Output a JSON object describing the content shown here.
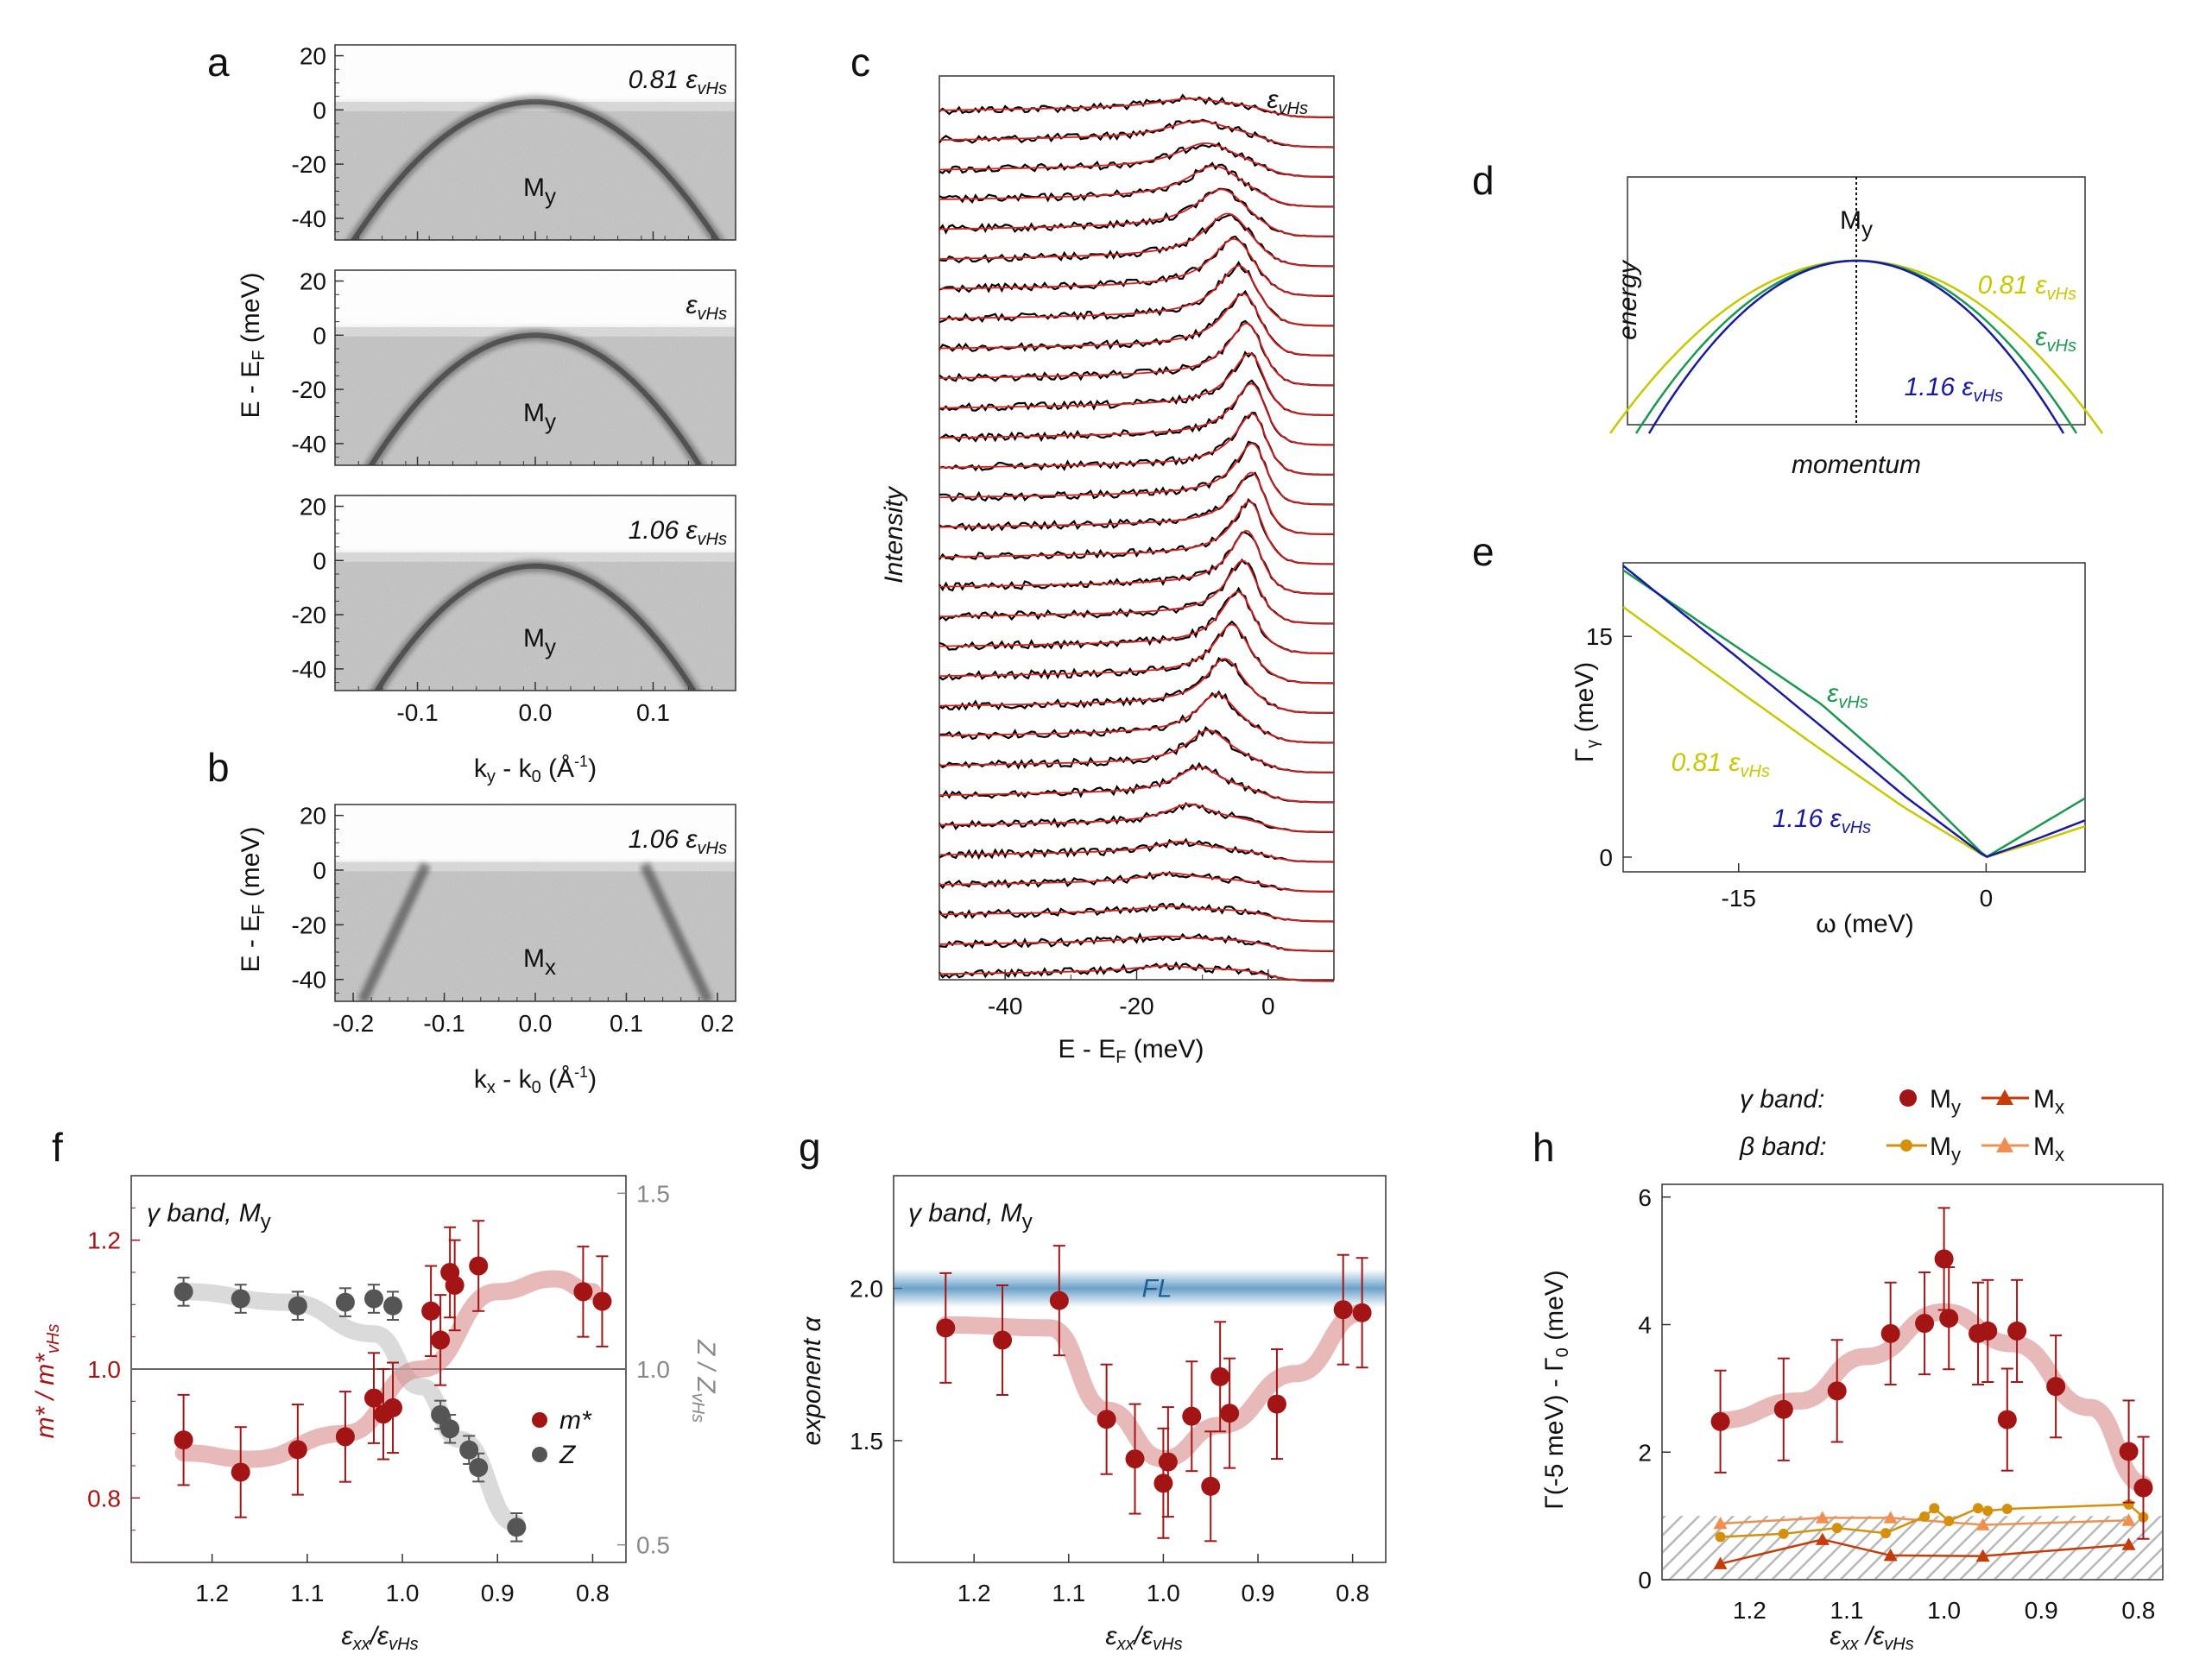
{
  "chart_data": [
    {
      "panel": "a",
      "type": "heatmap",
      "ylabel": "E - E_F (meV)",
      "xlabel": "k_y - k_0 (Å^-1)",
      "yticks": [
        "20",
        "0",
        "-20",
        "-40"
      ],
      "xticks": [
        "-0.1",
        "0.0",
        "0.1"
      ],
      "xlim": [
        -0.17,
        0.17
      ],
      "ylim": [
        -48,
        24
      ],
      "subpanels": [
        {
          "strain_label": "0.81 ε_vHs",
          "point_label": "M_y"
        },
        {
          "strain_label": "ε_vHs",
          "point_label": "M_y"
        },
        {
          "strain_label": "1.06 ε_vHs",
          "point_label": "M_y"
        }
      ]
    },
    {
      "panel": "b",
      "type": "heatmap",
      "ylabel": "E - E_F (meV)",
      "xlabel": "k_x - k_0 (Å^-1)",
      "yticks": [
        "20",
        "0",
        "-20",
        "-40"
      ],
      "xticks": [
        "-0.2",
        "-0.1",
        "0.0",
        "0.1",
        "0.2"
      ],
      "xlim": [
        -0.22,
        0.22
      ],
      "ylim": [
        -48,
        24
      ],
      "strain_label": "1.06 ε_vHs",
      "point_label": "M_x"
    },
    {
      "panel": "c",
      "type": "line",
      "title": "ε_vHs",
      "xlabel": "E - E_F (meV)",
      "ylabel": "Intensity",
      "xticks": [
        "-40",
        "-20",
        "0"
      ],
      "xlim": [
        -50,
        10
      ],
      "n_curves": 30,
      "series": [
        {
          "name": "data",
          "color": "#000000"
        },
        {
          "name": "fit",
          "color": "#d62020"
        }
      ]
    },
    {
      "panel": "d",
      "type": "line",
      "title": "M_y",
      "xlabel": "momentum",
      "ylabel": "energy",
      "series": [
        {
          "name": "0.81 ε_vHs",
          "color": "#c8c800"
        },
        {
          "name": "ε_vHs",
          "color": "#1a9850"
        },
        {
          "name": "1.16 ε_vHs",
          "color": "#1a1aa0"
        }
      ]
    },
    {
      "panel": "e",
      "type": "line",
      "xlabel": "ω (meV)",
      "ylabel": "Γ_γ (meV)",
      "xticks": [
        "-15",
        "0"
      ],
      "yticks": [
        "0",
        "15"
      ],
      "xlim": [
        -22,
        6
      ],
      "ylim": [
        -1,
        20
      ],
      "x": [
        -22,
        -15,
        -10,
        -5,
        0,
        3,
        6
      ],
      "series": [
        {
          "name": "ε_vHs",
          "color": "#1a9850",
          "values": [
            19.5,
            14.2,
            10.4,
            5.5,
            0.0,
            2.0,
            4.0
          ]
        },
        {
          "name": "0.81 ε_vHs",
          "color": "#c8c800",
          "values": [
            17.0,
            11.3,
            7.3,
            3.4,
            0.0,
            1.0,
            2.1
          ]
        },
        {
          "name": "1.16 ε_vHs",
          "color": "#1a1aa0",
          "values": [
            19.8,
            13.5,
            8.9,
            4.2,
            0.0,
            1.2,
            2.5
          ]
        }
      ]
    },
    {
      "panel": "f",
      "type": "scatter",
      "title": "γ band, M_y",
      "xlabel": "ε_xx/ε_vHs",
      "ylabel": "m*/m*_vHs",
      "y2label": "Z/Z_vHs",
      "xticks": [
        "1.2",
        "1.1",
        "1.0",
        "0.9",
        "0.8"
      ],
      "yticks": [
        "0.8",
        "1.0",
        "1.2"
      ],
      "y2ticks": [
        "0.5",
        "1.0",
        "1.5"
      ],
      "xlim": [
        1.285,
        0.765
      ],
      "ylim": [
        0.7,
        1.3
      ],
      "y2lim": [
        0.45,
        1.55
      ],
      "legend": [
        "m*",
        "Z"
      ],
      "series": [
        {
          "name": "m*",
          "color": "#a31515",
          "x": [
            1.23,
            1.17,
            1.11,
            1.06,
            1.03,
            1.02,
            1.01,
            0.97,
            0.96,
            0.95,
            0.945,
            0.92,
            0.81,
            0.79
          ],
          "values": [
            0.89,
            0.84,
            0.875,
            0.895,
            0.955,
            0.93,
            0.94,
            1.09,
            1.045,
            1.15,
            1.13,
            1.16,
            1.12,
            1.105
          ],
          "err": [
            0.07,
            0.07,
            0.07,
            0.07,
            0.07,
            0.07,
            0.07,
            0.07,
            0.07,
            0.07,
            0.07,
            0.07,
            0.07,
            0.07
          ]
        },
        {
          "name": "Z",
          "color": "#555555",
          "x": [
            1.23,
            1.17,
            1.11,
            1.06,
            1.03,
            1.01,
            0.96,
            0.95,
            0.93,
            0.92,
            0.88
          ],
          "values": [
            1.22,
            1.2,
            1.18,
            1.19,
            1.2,
            1.18,
            0.87,
            0.83,
            0.77,
            0.72,
            0.55
          ],
          "err": [
            0.04,
            0.04,
            0.04,
            0.04,
            0.04,
            0.04,
            0.04,
            0.04,
            0.04,
            0.04,
            0.04
          ]
        }
      ]
    },
    {
      "panel": "g",
      "type": "scatter",
      "title": "γ band, M_y",
      "xlabel": "ε_xx/ε_vHs",
      "ylabel": "exponent α",
      "xticks": [
        "1.2",
        "1.1",
        "1.0",
        "0.9",
        "0.8"
      ],
      "yticks": [
        "1.5",
        "2.0"
      ],
      "xlim": [
        1.285,
        0.765
      ],
      "ylim": [
        1.1,
        2.37
      ],
      "band_label": "FL",
      "series": [
        {
          "name": "α",
          "color": "#a31515",
          "x": [
            1.23,
            1.17,
            1.11,
            1.06,
            1.03,
            1.0,
            0.995,
            0.97,
            0.95,
            0.94,
            0.93,
            0.88,
            0.81,
            0.79
          ],
          "values": [
            1.87,
            1.83,
            1.96,
            1.57,
            1.44,
            1.36,
            1.43,
            1.58,
            1.35,
            1.71,
            1.59,
            1.62,
            1.93,
            1.92
          ],
          "err": [
            0.18,
            0.18,
            0.18,
            0.18,
            0.18,
            0.18,
            0.18,
            0.18,
            0.18,
            0.18,
            0.18,
            0.18,
            0.18,
            0.18
          ]
        }
      ]
    },
    {
      "panel": "h",
      "type": "scatter",
      "xlabel": "ε_xx/ε_vHs",
      "ylabel": "Γ(-5 meV) - Γ_0 (meV)",
      "xticks": [
        "1.2",
        "1.1",
        "1.0",
        "0.9",
        "0.8"
      ],
      "yticks": [
        "0",
        "2",
        "4",
        "6"
      ],
      "xlim": [
        1.29,
        0.775
      ],
      "ylim": [
        0,
        6.2
      ],
      "legend": {
        "gamma_label": "γ band:",
        "beta_label": "β band:",
        "my": "M_y",
        "mx": "M_x"
      },
      "series": [
        {
          "name": "γ M_y",
          "color": "#a31515",
          "x": [
            1.23,
            1.165,
            1.11,
            1.055,
            1.02,
            1.0,
            0.995,
            0.965,
            0.955,
            0.935,
            0.925,
            0.885,
            0.81,
            0.795
          ],
          "values": [
            2.48,
            2.67,
            2.96,
            3.86,
            4.02,
            5.03,
            4.1,
            3.86,
            3.9,
            2.51,
            3.9,
            3.03,
            2.01,
            1.44
          ],
          "err": [
            0.8,
            0.8,
            0.8,
            0.8,
            0.8,
            0.8,
            0.8,
            0.8,
            0.8,
            0.8,
            0.8,
            0.8,
            0.8,
            0.8
          ]
        },
        {
          "name": "γ M_x",
          "color": "#c43c0a",
          "x": [
            1.23,
            1.125,
            1.055,
            0.96,
            0.81
          ],
          "values": [
            0.25,
            0.63,
            0.38,
            0.37,
            0.55
          ]
        },
        {
          "name": "β M_y",
          "color": "#d4900a",
          "x": [
            1.23,
            1.165,
            1.11,
            1.06,
            1.02,
            1.01,
            0.995,
            0.965,
            0.955,
            0.935,
            0.81,
            0.795
          ],
          "values": [
            0.67,
            0.72,
            0.81,
            0.73,
            0.99,
            1.12,
            0.92,
            1.12,
            1.08,
            1.11,
            1.18,
            0.98
          ]
        },
        {
          "name": "β M_x",
          "color": "#f09050",
          "x": [
            1.23,
            1.125,
            1.055,
            0.96,
            0.81
          ],
          "values": [
            0.88,
            0.97,
            0.97,
            0.86,
            0.93
          ]
        }
      ]
    }
  ]
}
